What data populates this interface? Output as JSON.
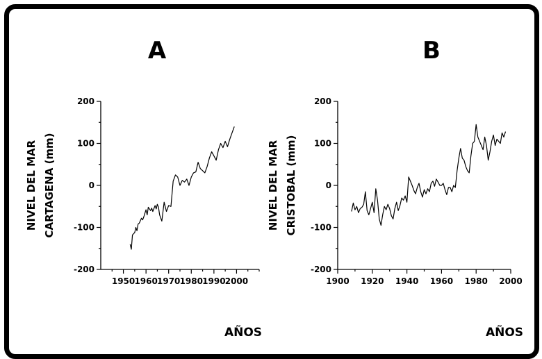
{
  "chart_data": [
    {
      "type": "line",
      "panel_label": "A",
      "ylabel_line1": "NIVEL DEL MAR",
      "ylabel_line2": "CARTAGENA (mm)",
      "xlabel": "AÑOS",
      "xlim": [
        1940,
        2010
      ],
      "ylim": [
        -200,
        200
      ],
      "xticks": [
        1950,
        1960,
        1970,
        1980,
        1990,
        2000
      ],
      "yticks": [
        -200,
        -100,
        0,
        100,
        200
      ],
      "ytick_labels": [
        "-200",
        "-100",
        "0",
        "100",
        "200"
      ],
      "color": "#000000",
      "series": [
        {
          "x": [
            1953,
            1953.5,
            1954,
            1955,
            1955.5,
            1956,
            1956.5,
            1957,
            1958,
            1958.5,
            1959,
            1960,
            1960.5,
            1961,
            1962,
            1962.5,
            1963,
            1964,
            1964.5,
            1965,
            1965.5,
            1966,
            1967,
            1968,
            1969,
            1970,
            1971,
            1972,
            1973,
            1974,
            1975,
            1976,
            1977,
            1978,
            1979,
            1980,
            1981,
            1982,
            1983,
            1984,
            1985,
            1986,
            1987,
            1988,
            1989,
            1990,
            1991,
            1992,
            1993,
            1994,
            1995,
            1996,
            1997,
            1998,
            1999
          ],
          "y": [
            -140,
            -152,
            -118,
            -112,
            -100,
            -108,
            -92,
            -90,
            -78,
            -82,
            -75,
            -58,
            -70,
            -52,
            -60,
            -54,
            -62,
            -48,
            -56,
            -45,
            -52,
            -70,
            -85,
            -40,
            -62,
            -48,
            -50,
            10,
            25,
            20,
            0,
            12,
            8,
            15,
            0,
            20,
            30,
            32,
            55,
            40,
            35,
            30,
            45,
            65,
            80,
            70,
            60,
            85,
            100,
            90,
            105,
            92,
            110,
            125,
            140
          ]
        }
      ]
    },
    {
      "type": "line",
      "panel_label": "B",
      "ylabel_line1": "NIVEL DEL MAR",
      "ylabel_line2": "CRISTOBAL (mm)",
      "xlabel": "AÑOS",
      "xlim": [
        1900,
        2000
      ],
      "ylim": [
        -200,
        200
      ],
      "xticks": [
        1900,
        1920,
        1940,
        1960,
        1980,
        2000
      ],
      "yticks": [
        -200,
        -100,
        0,
        100,
        200
      ],
      "ytick_labels": [
        "-200",
        "-100",
        "0",
        "100",
        "200"
      ],
      "color": "#000000",
      "series": [
        {
          "x": [
            1908,
            1909,
            1910,
            1911,
            1912,
            1913,
            1914,
            1915,
            1916,
            1917,
            1918,
            1919,
            1920,
            1921,
            1922,
            1923,
            1924,
            1925,
            1926,
            1927,
            1928,
            1929,
            1930,
            1931,
            1932,
            1933,
            1934,
            1935,
            1936,
            1937,
            1938,
            1939,
            1940,
            1941,
            1942,
            1943,
            1944,
            1945,
            1946,
            1947,
            1948,
            1949,
            1950,
            1951,
            1952,
            1953,
            1954,
            1955,
            1956,
            1957,
            1958,
            1959,
            1960,
            1961,
            1962,
            1963,
            1964,
            1965,
            1966,
            1967,
            1968,
            1969,
            1970,
            1971,
            1972,
            1973,
            1974,
            1975,
            1976,
            1977,
            1978,
            1979,
            1980,
            1981,
            1982,
            1983,
            1984,
            1985,
            1986,
            1987,
            1988,
            1989,
            1990,
            1991,
            1992,
            1993,
            1994,
            1995,
            1996,
            1997
          ],
          "y": [
            -62,
            -42,
            -58,
            -50,
            -65,
            -55,
            -52,
            -45,
            -15,
            -60,
            -70,
            -55,
            -40,
            -65,
            -8,
            -35,
            -80,
            -95,
            -70,
            -50,
            -58,
            -45,
            -55,
            -72,
            -80,
            -55,
            -40,
            -60,
            -48,
            -30,
            -35,
            -25,
            -40,
            20,
            10,
            0,
            -12,
            -20,
            -5,
            5,
            -15,
            -28,
            -10,
            -20,
            -8,
            -15,
            5,
            10,
            -2,
            15,
            8,
            0,
            0,
            5,
            -10,
            -22,
            -5,
            -5,
            -15,
            0,
            -5,
            35,
            65,
            88,
            65,
            60,
            45,
            35,
            30,
            70,
            100,
            105,
            145,
            115,
            105,
            95,
            85,
            115,
            95,
            60,
            80,
            105,
            120,
            95,
            110,
            105,
            100,
            125,
            115,
            128
          ]
        }
      ]
    }
  ]
}
